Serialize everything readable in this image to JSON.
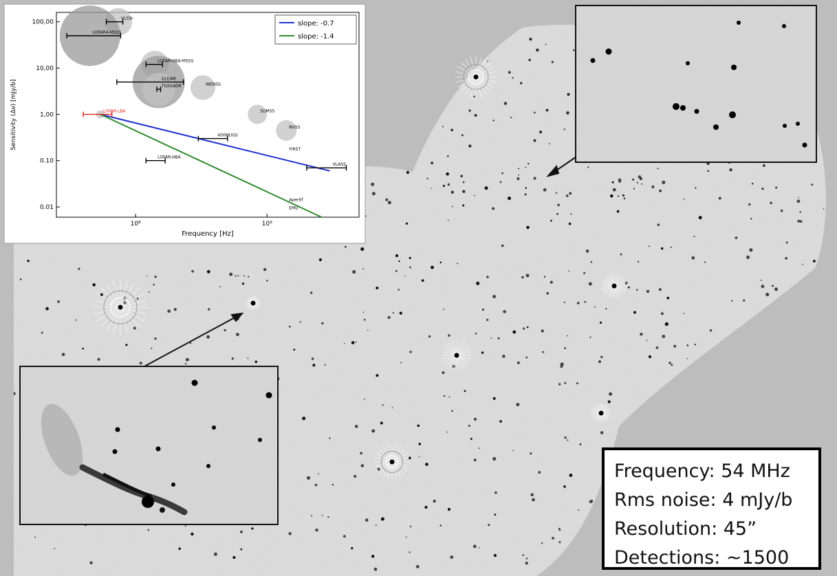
{
  "scene": {
    "description_colors": {
      "background": "#bdbdbd",
      "mosaic_fill": "#d6d6d6",
      "source": "#111111"
    }
  },
  "info_box": {
    "line1": "Frequency: 54 MHz",
    "line2": "Rms noise: 4 mJy/b",
    "line3": "Resolution: 45”",
    "line4": "Detections: ~1500"
  },
  "chart_data": {
    "type": "scatter",
    "xscale": "log",
    "yscale": "log",
    "xlabel": "Frequency [Hz]",
    "ylabel": "Sensitivity (Δν) [mJy/b]",
    "xlim": [
      25000000,
      5000000000
    ],
    "ylim": [
      0.006,
      160
    ],
    "xticks": [
      {
        "value": 100000000,
        "label": "10⁸"
      },
      {
        "value": 1000000000,
        "label": "10⁹"
      }
    ],
    "yticks": [
      {
        "value": 100,
        "label": "100,00"
      },
      {
        "value": 10,
        "label": "10,00"
      },
      {
        "value": 1,
        "label": "1,00"
      },
      {
        "value": 0.1,
        "label": "0.10"
      },
      {
        "value": 0.01,
        "label": "0.01"
      }
    ],
    "lines": [
      {
        "name": "slope: -0.7",
        "color": "#1f2fd1",
        "x": [
          54000000,
          3000000000
        ],
        "y": [
          1.0,
          0.06
        ]
      },
      {
        "name": "slope: -1.4",
        "color": "#2e8b2e",
        "x": [
          54000000,
          2600000000
        ],
        "y": [
          1.0,
          0.005
        ]
      }
    ],
    "surveys": [
      {
        "label": "VLSSr",
        "x": 74000000,
        "y": 100,
        "xerr": [
          60000000,
          80000000
        ],
        "bubble": 1.0,
        "color": "#000"
      },
      {
        "label": "LOFAR4-MSSS",
        "x": 45000000,
        "y": 50,
        "xerr": [
          30000000,
          77000000
        ],
        "bubble": 2.2,
        "color": "#000"
      },
      {
        "label": "LOFAR-HBA-MSSS",
        "x": 140000000,
        "y": 12,
        "xerr": [
          120000000,
          160000000
        ],
        "bubble": 1.0,
        "color": "#000"
      },
      {
        "label": "GLEAM",
        "x": 150000000,
        "y": 5,
        "xerr": [
          72000000,
          231000000
        ],
        "bubble": 1.9,
        "color": "#000"
      },
      {
        "label": "TGSSADR",
        "x": 150000000,
        "y": 3.5,
        "xerr": [
          145000000,
          155000000
        ],
        "bubble": 1.2,
        "color": "#000"
      },
      {
        "label": "WENSS",
        "x": 325000000,
        "y": 3.8,
        "xerr": null,
        "bubble": 0.9,
        "color": "#000"
      },
      {
        "label": "SUMSS",
        "x": 843000000,
        "y": 1.0,
        "xerr": null,
        "bubble": 0.7,
        "color": "#000"
      },
      {
        "label": "NVSS",
        "x": 1400000000,
        "y": 0.45,
        "xerr": null,
        "bubble": 0.75,
        "color": "#000"
      },
      {
        "label": "LOFAR-LBA",
        "x": 54000000,
        "y": 1.0,
        "xerr": [
          40000000,
          66000000
        ],
        "bubble": 0.3,
        "color": "#e02020"
      },
      {
        "label": "400MUGS",
        "x": 400000000,
        "y": 0.3,
        "xerr": [
          300000000,
          500000000
        ],
        "bubble": 0,
        "color": "#000"
      },
      {
        "label": "FIRST",
        "x": 1400000000,
        "y": 0.15,
        "xerr": null,
        "bubble": 0,
        "color": "#000"
      },
      {
        "label": "VLASS",
        "x": 3000000000,
        "y": 0.07,
        "xerr": [
          2000000000,
          4000000000
        ],
        "bubble": 0,
        "color": "#000"
      },
      {
        "label": "LOFAR-HBA",
        "x": 140000000,
        "y": 0.1,
        "xerr": [
          120000000,
          168000000
        ],
        "bubble": 0,
        "color": "#000"
      },
      {
        "label": "Apertif",
        "x": 1400000000,
        "y": 0.012,
        "xerr": null,
        "bubble": 0,
        "color": "#000"
      },
      {
        "label": "EMU",
        "x": 1400000000,
        "y": 0.008,
        "xerr": null,
        "bubble": 0,
        "color": "#000"
      }
    ],
    "legend": "top-right"
  }
}
